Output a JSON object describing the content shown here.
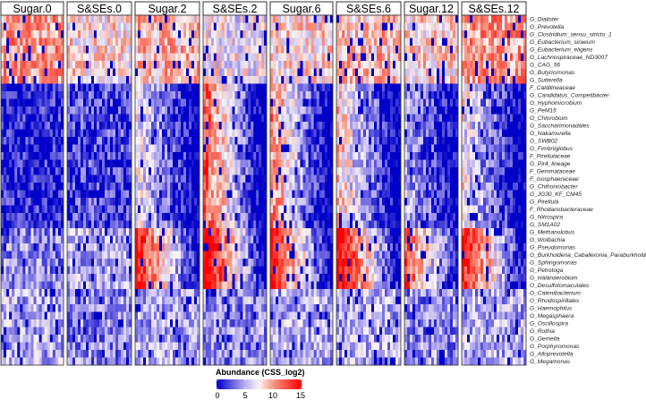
{
  "chart_data": {
    "type": "heatmap",
    "title": "",
    "panels": [
      "Sugar.0",
      "S&SEs.0",
      "Sugar.2",
      "S&SEs.2",
      "Sugar.6",
      "S&SEs.6",
      "Sugar.12",
      "S&SEs.12"
    ],
    "rows": [
      "G_Dialister",
      "G_Prevotella",
      "G_Clostridium_sensu_stricto_1",
      "G_Eubacterium_siraeum",
      "G_Eubacterium_eligens",
      "G_Lachnospiraceae_ND3007",
      "G_CAG_56",
      "G_Butyricimonas",
      "G_Sutterella",
      "F_Caldilineaceae",
      "G_Candidatus_Competibacter",
      "G_Hyphomicrobium",
      "G_PeM15",
      "G_Chlorobium",
      "G_Saccharimonadales",
      "G_Nakamurella",
      "G_SWB02",
      "G_Fimbriiglobus",
      "F_Pirellulaceae",
      "G_Pir4_lineage",
      "F_Gemmataceae",
      "F_Isosphaeraceae",
      "G_Chthoniobacter",
      "G_JG30_KF_CM45",
      "G_Pirellula",
      "F_Rhodanobacteraceae",
      "G_Nitrospira",
      "G_SM1A02",
      "G_Methanolobus",
      "G_Wolbachia",
      "G_Pseudomonas",
      "G_Burkholderia_Caballeronia_Paraburkholderia",
      "G_Sphingomonas",
      "G_Petrotoga",
      "G_Halanaerobium",
      "O_Desulfotomaculales",
      "G_Catenibacterium",
      "O_Rhodospirillales",
      "G_Haemophilus",
      "G_Megasphaera",
      "G_Oscillospira",
      "G_Rothia",
      "G_Gemella",
      "G_Porphyromonas",
      "G_Alloprevotella",
      "G_Megamonas"
    ],
    "approx_mean_abundance_by_panel": {
      "gut_core_rows_0_8": [
        10,
        8,
        9,
        7,
        8,
        9,
        8,
        10
      ],
      "environmental_rows_9_27": [
        1,
        2,
        4,
        7,
        6,
        5,
        3,
        4
      ],
      "mixed_rows_28_35": [
        4,
        5,
        7,
        8,
        7,
        8,
        6,
        7
      ],
      "minor_gut_rows_36_45": [
        5,
        4,
        5,
        4,
        5,
        5,
        4,
        5
      ]
    },
    "legend": {
      "title": "Abundance (CSS_log2)",
      "ticks": [
        0,
        5,
        10,
        15
      ],
      "range": [
        0,
        15
      ],
      "colors": [
        "#0000c8",
        "#ffffff",
        "#ff0000"
      ],
      "placement": "bottom-center"
    }
  }
}
